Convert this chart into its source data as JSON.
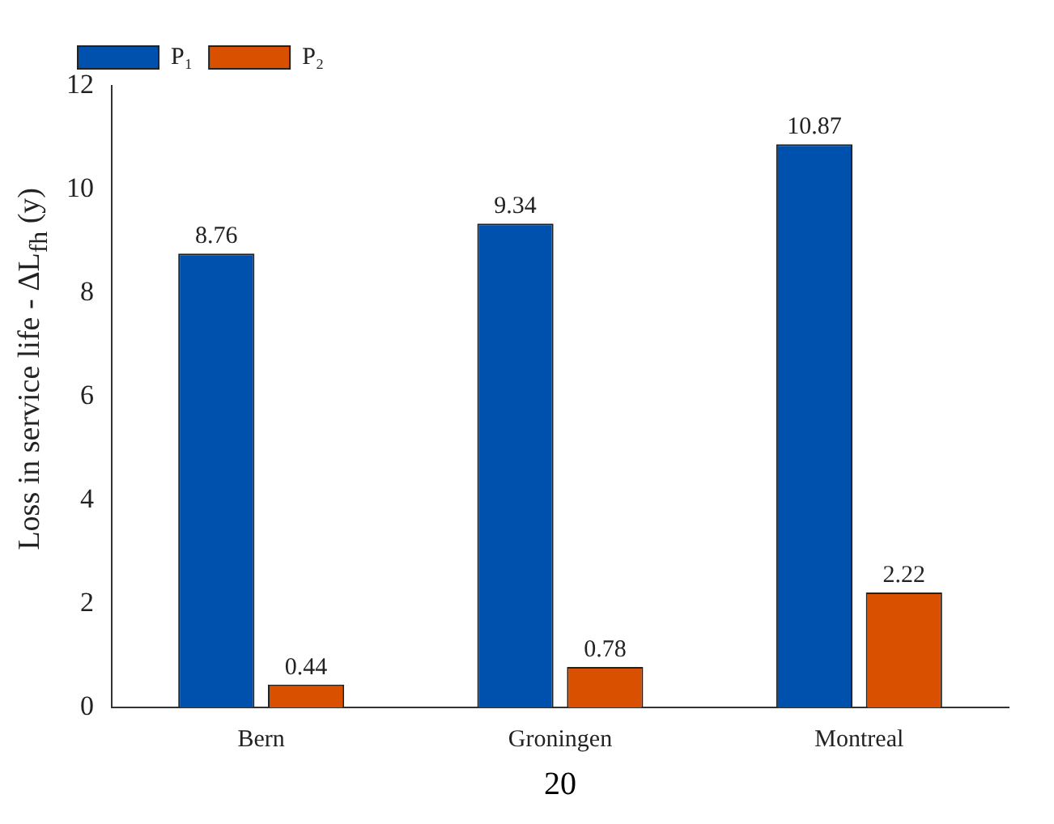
{
  "chart_data": {
    "type": "bar",
    "categories": [
      "Bern",
      "Groningen",
      "Montreal"
    ],
    "series": [
      {
        "name": "P₁",
        "color": "#0050ae",
        "values": [
          8.76,
          9.34,
          10.87
        ]
      },
      {
        "name": "P₂",
        "color": "#d95000",
        "values": [
          0.44,
          0.78,
          2.22
        ]
      }
    ],
    "xlabel": "20",
    "ylabel": "Loss in service life - ΔL$_{fh}$ (y)",
    "ylim": [
      0,
      12
    ],
    "yticks": [
      0,
      2,
      4,
      6,
      8,
      10,
      12
    ],
    "grid": false,
    "legend": "top left",
    "data_labels": true
  }
}
